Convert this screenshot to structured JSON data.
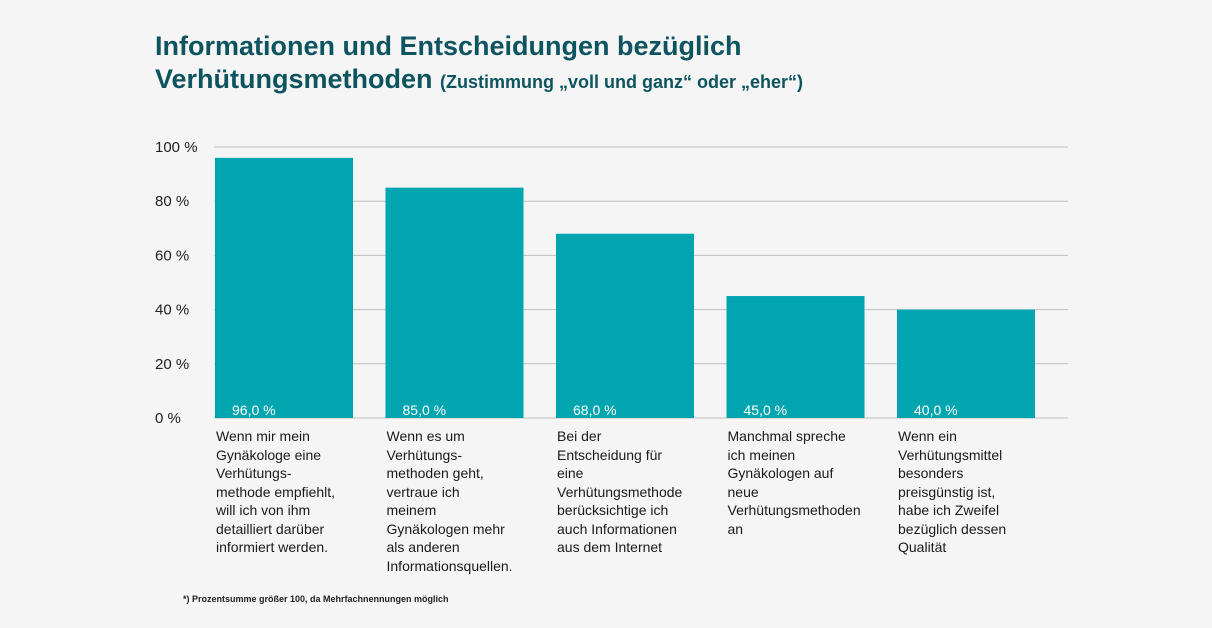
{
  "title": {
    "line1": "Informationen und Entscheidungen bezüglich",
    "line2_main": "Verhütungsmethoden",
    "line2_sub": "(Zustimmung „voll und ganz“ oder „eher“)"
  },
  "footnote": "*) Prozentsumme größer 100, da Mehrfachnennungen möglich",
  "colors": {
    "bar": "#00a5af",
    "grid": "#bfbfbf",
    "title": "#0d5460"
  },
  "chart_data": {
    "type": "bar",
    "title": "Informationen und Entscheidungen bezüglich Verhütungsmethoden (Zustimmung „voll und ganz“ oder „eher“)",
    "categories": [
      "Wenn mir mein Gynäkologe eine Verhütungs- methode empfiehlt, will ich von ihm detailliert darüber informiert werden.",
      "Wenn es um Verhütungs- methoden geht, vertraue ich meinem Gynäkologen mehr als anderen Informationsquellen.",
      "Bei der Entscheidung für eine Verhütungsmethode berücksichtige ich auch Informationen aus dem Internet",
      "Manchmal spreche ich meinen Gynäkologen auf neue Verhütungsmethoden an",
      "Wenn ein Verhütungsmittel besonders preisgünstig ist, habe ich Zweifel bezüglich dessen Qualität"
    ],
    "category_lines": [
      [
        "Wenn mir mein",
        "Gynäkologe eine",
        "Verhütungs-",
        "methode empfiehlt,",
        "will ich von ihm",
        "detailliert darüber",
        "informiert werden."
      ],
      [
        "Wenn es um",
        "Verhütungs-",
        "methoden geht,",
        "vertraue ich",
        "meinem",
        "Gynäkologen mehr",
        "als anderen",
        "Informationsquellen."
      ],
      [
        "Bei der",
        "Entscheidung für",
        "eine",
        "Verhütungsmethode",
        "berücksichtige ich",
        "auch Informationen",
        "aus dem Internet"
      ],
      [
        "Manchmal spreche",
        "ich meinen",
        "Gynäkologen auf",
        "neue",
        "Verhütungsmethoden",
        "an"
      ],
      [
        "Wenn ein",
        "Verhütungsmittel",
        "besonders",
        "preisgünstig ist,",
        "habe ich Zweifel",
        "bezüglich dessen",
        "Qualität"
      ]
    ],
    "values": [
      96.0,
      85.0,
      68.0,
      45.0,
      40.0
    ],
    "value_labels": [
      "96,0 %",
      "85,0 %",
      "68,0 %",
      "45,0 %",
      "40,0 %"
    ],
    "yticks": [
      0,
      20,
      40,
      60,
      80,
      100
    ],
    "ytick_labels": [
      "0 %",
      "20 %",
      "40 %",
      "60 %",
      "80 %",
      "100 %"
    ],
    "ylim": [
      0,
      100
    ],
    "grid": true,
    "legend": "none"
  }
}
